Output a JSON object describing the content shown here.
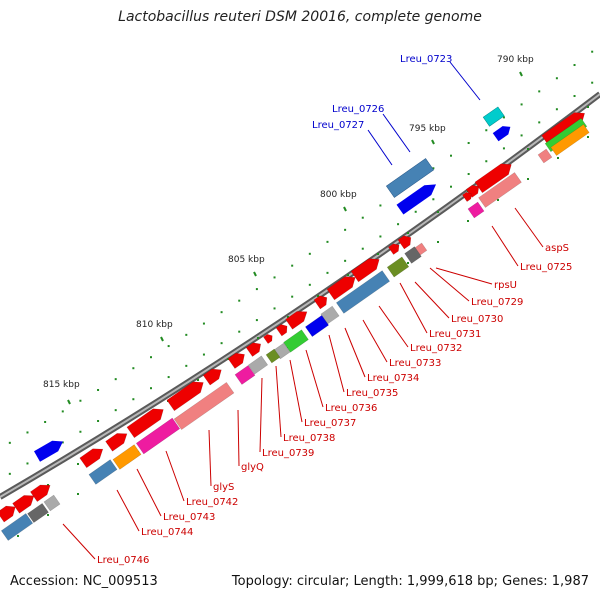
{
  "title": "Lactobacillus reuteri DSM 20016, complete genome",
  "footer": {
    "accession": "Accession: NC_009513",
    "summary": "Topology: circular; Length: 1,999,618 bp; Genes: 1,987"
  },
  "ticks": [
    "790 kbp",
    "795 kbp",
    "800 kbp",
    "805 kbp",
    "810 kbp",
    "815 kbp"
  ],
  "labels_outer": [
    "Lreu_0723",
    "Lreu_0726",
    "Lreu_0727"
  ],
  "labels_inner": [
    "aspS",
    "Lreu_0725",
    "rpsU",
    "Lreu_0729",
    "Lreu_0730",
    "Lreu_0731",
    "Lreu_0732",
    "Lreu_0733",
    "Lreu_0734",
    "Lreu_0735",
    "Lreu_0736",
    "Lreu_0737",
    "Lreu_0738",
    "Lreu_0739",
    "glyQ",
    "glyS",
    "Lreu_0742",
    "Lreu_0743",
    "Lreu_0744",
    "Lreu_0746"
  ],
  "colors": {
    "backbone": "#7f7f7f",
    "cds": "#ee0000",
    "gene": "#f08080",
    "outer_cds": "#0000ee",
    "outer_gene": "#4682b4",
    "cyan": "#00cccc",
    "green": "#33cc33",
    "orange": "#ff9900",
    "olive": "#6b8e23",
    "magenta": "#ee1ca0",
    "grey": "#aaaaaa",
    "darkgrey": "#666666",
    "tick": "#228b22",
    "label_inner": "#cc0000",
    "label_outer": "#0000cc"
  }
}
